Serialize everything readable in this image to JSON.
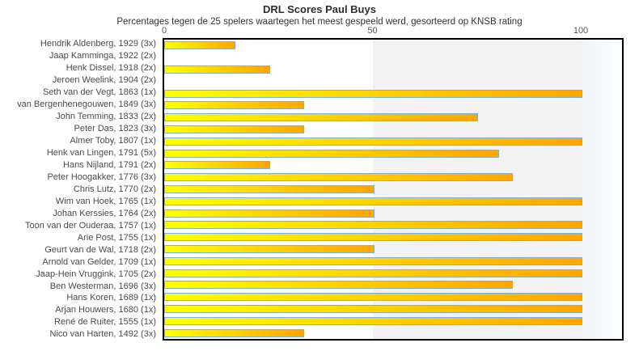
{
  "chart_data": {
    "type": "bar",
    "orientation": "horizontal",
    "title": "DRL Scores Paul Buys",
    "subtitle": "Percentages tegen de 25 spelers waartegen het meest gespeeld werd, gesorteerd op KNSB rating",
    "xlabel": "",
    "ylabel": "",
    "xlim": [
      0,
      110
    ],
    "x_ticks": [
      0,
      50,
      100
    ],
    "grid": false,
    "legend": false,
    "categories": [
      "Hendrik Aldenberg, 1929 (3x)",
      "Jaap Kamminga, 1922 (2x)",
      "Henk Dissel, 1918 (2x)",
      "Jeroen Weelink, 1904 (2x)",
      "Seth van der Vegt, 1863 (1x)",
      "van Bergenhenegouwen, 1849 (3x)",
      "John Temming, 1833 (2x)",
      "Peter Das, 1823 (3x)",
      "Almer Toby, 1807 (1x)",
      "Henk van Lingen, 1791 (5x)",
      "Hans Nijland, 1791 (2x)",
      "Peter Hoogakker, 1776 (3x)",
      "Chris Lutz, 1770 (2x)",
      "Wim van Hoek, 1765 (1x)",
      "Johan Kerssies, 1764 (2x)",
      "Toon van der Ouderaa, 1757 (1x)",
      "Arie Post, 1755 (1x)",
      "Geurt van de Wal, 1718 (2x)",
      "Arnold van Gelder, 1709 (1x)",
      "Jaap-Hein Vruggink, 1705 (2x)",
      "Ben Westerman, 1696 (3x)",
      "Hans Koren, 1689 (1x)",
      "Arjan Houwers, 1680 (1x)",
      "René de Ruiter, 1555 (1x)",
      "Nico van Harten, 1492 (3x)"
    ],
    "values": [
      16.7,
      0,
      25,
      0,
      100,
      33.3,
      75,
      33.3,
      100,
      80,
      25,
      83.3,
      50,
      100,
      50,
      100,
      100,
      50,
      100,
      100,
      83.3,
      100,
      100,
      100,
      33.3
    ],
    "colors": {
      "bar_gradient_start": "#ffff00",
      "bar_gradient_end": "#ffa500",
      "bar_border": "#7fb0d6",
      "band_0_50": "#ffffff",
      "band_50_100": "#f2f2f2",
      "band_over_100_start": "#eef4f8",
      "band_over_100_end": "#fdfeff",
      "plot_border": "#000000",
      "title_color": "#2d2d2d",
      "tick_color": "#555555",
      "label_color": "#4a4a4a"
    }
  }
}
